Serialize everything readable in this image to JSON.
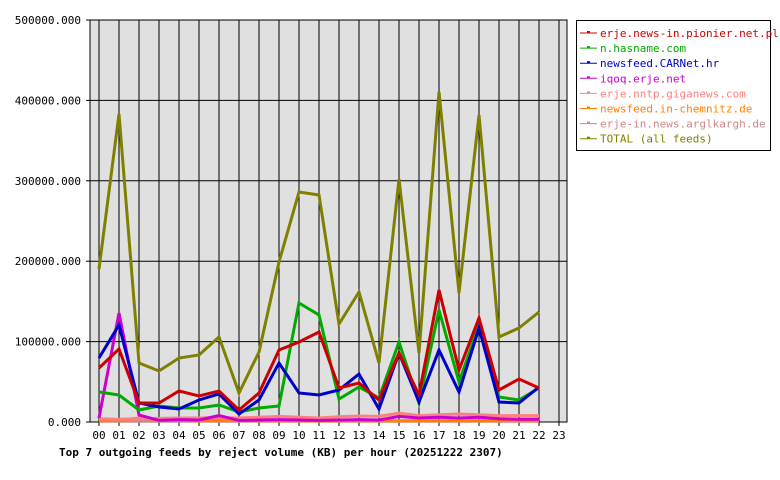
{
  "chart_data": {
    "type": "line",
    "title": "Top 7 outgoing feeds by reject volume (KB) per hour (20251222 2307)",
    "xlabel": "",
    "ylabel": "",
    "ylim": [
      0,
      500000
    ],
    "grid": true,
    "legend_position": "right",
    "y_ticks": [
      "0.000",
      "100000.000",
      "200000.000",
      "300000.000",
      "400000.000",
      "500000.000"
    ],
    "y_tick_values": [
      0,
      100000,
      200000,
      300000,
      400000,
      500000
    ],
    "x": [
      "00",
      "01",
      "02",
      "03",
      "04",
      "05",
      "06",
      "07",
      "08",
      "09",
      "10",
      "11",
      "12",
      "13",
      "14",
      "15",
      "16",
      "17",
      "18",
      "19",
      "20",
      "21",
      "22",
      "23"
    ],
    "series": [
      {
        "name": "erje.news-in.pionier.net.pl",
        "color": "#cc0000",
        "values": [
          67200,
          90800,
          23600,
          23600,
          38600,
          32300,
          38600,
          14900,
          36100,
          89600,
          99500,
          111900,
          42300,
          48500,
          27400,
          85800,
          33600,
          164200,
          64700,
          129400,
          39800,
          53500,
          42300
        ]
      },
      {
        "name": "n.hasname.com",
        "color": "#00aa00",
        "values": [
          37300,
          33600,
          14900,
          19900,
          17400,
          17400,
          21100,
          12400,
          17400,
          19900,
          148000,
          133100,
          28600,
          43500,
          29900,
          99500,
          23600,
          139300,
          49800,
          120600,
          31100,
          27400,
          42300
        ]
      },
      {
        "name": "newsfeed.CARNet.hr",
        "color": "#0000cc",
        "values": [
          79600,
          120600,
          23600,
          18700,
          16200,
          27400,
          34800,
          10000,
          27400,
          73400,
          36100,
          33600,
          39800,
          59700,
          16200,
          85800,
          24900,
          89600,
          37300,
          116900,
          24900,
          23600,
          43500
        ]
      },
      {
        "name": "iqoq.erje.net",
        "color": "#cc00cc",
        "values": [
          5000,
          135600,
          8700,
          2000,
          3000,
          2500,
          8000,
          2000,
          2500,
          3000,
          2500,
          2000,
          2500,
          3000,
          2500,
          7000,
          5000,
          6000,
          5000,
          6000,
          4000,
          3500,
          3500
        ]
      },
      {
        "name": "erje.nntp.giganews.com",
        "color": "#ff8080",
        "values": [
          4000,
          3500,
          4000,
          4500,
          5000,
          5000,
          5500,
          5000,
          6000,
          7000,
          6000,
          5000,
          6500,
          7500,
          7000,
          11000,
          8000,
          9000,
          10000,
          9000,
          8000,
          8000,
          8000
        ]
      },
      {
        "name": "newsfeed.in-chemnitz.de",
        "color": "#ff8000",
        "values": [
          1500,
          2000,
          5000,
          3000,
          2000,
          1500,
          2000,
          2500,
          1500,
          1500,
          1500,
          1500,
          1500,
          1500,
          1500,
          1500,
          1500,
          1500,
          1500,
          1500,
          1500,
          1500,
          1500
        ]
      },
      {
        "name": "erje-in.news.arglkargh.de",
        "color": "#cc8888",
        "values": [
          1000,
          1000,
          1000,
          1000,
          1000,
          1000,
          1000,
          1000,
          1000,
          1000,
          1000,
          1000,
          1000,
          1000,
          1000,
          1000,
          1000,
          1000,
          1000,
          1000,
          1000,
          1000,
          1000
        ]
      },
      {
        "name": "TOTAL (all feeds)",
        "color": "#808000",
        "values": [
          190300,
          383100,
          73400,
          63400,
          79600,
          83300,
          105700,
          36100,
          87100,
          199000,
          286100,
          282300,
          121900,
          161700,
          73400,
          302200,
          85800,
          410400,
          160400,
          381800,
          105700,
          116900,
          136800
        ]
      }
    ]
  },
  "legend": {
    "items": [
      {
        "label": "erje.news-in.pionier.net.pl",
        "color": "#cc0000"
      },
      {
        "label": "n.hasname.com",
        "color": "#00aa00"
      },
      {
        "label": "newsfeed.CARNet.hr",
        "color": "#0000cc"
      },
      {
        "label": "iqoq.erje.net",
        "color": "#cc00cc"
      },
      {
        "label": "erje.nntp.giganews.com",
        "color": "#ff8080"
      },
      {
        "label": "newsfeed.in-chemnitz.de",
        "color": "#ff8000"
      },
      {
        "label": "erje-in.news.arglkargh.de",
        "color": "#cc8888"
      },
      {
        "label": "TOTAL (all feeds)",
        "color": "#808000"
      }
    ]
  },
  "colors": {
    "plot_background": "#e0e0e0",
    "grid": "#000000",
    "axis": "#000000"
  }
}
